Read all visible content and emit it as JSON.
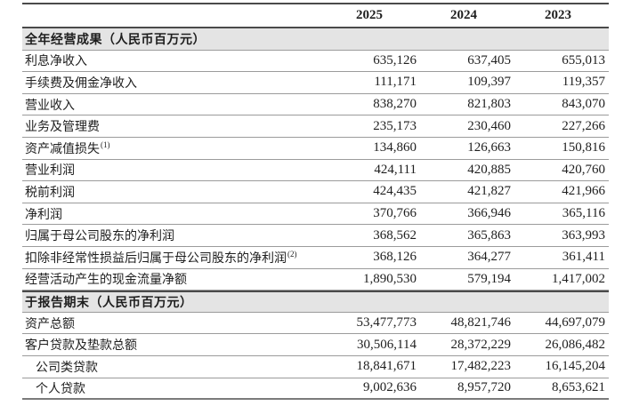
{
  "table": {
    "years": [
      "2025",
      "2024",
      "2023"
    ],
    "sections": [
      {
        "title": "全年经营成果（人民币百万元）",
        "rows": [
          {
            "label": "利息净收入",
            "values": [
              "635,126",
              "637,405",
              "655,013"
            ]
          },
          {
            "label": "手续费及佣金净收入",
            "values": [
              "111,171",
              "109,397",
              "119,357"
            ]
          },
          {
            "label": "营业收入",
            "values": [
              "838,270",
              "821,803",
              "843,070"
            ]
          },
          {
            "label": "业务及管理费",
            "values": [
              "235,173",
              "230,460",
              "227,266"
            ]
          },
          {
            "label": "资产减值损失",
            "sup": "(1)",
            "values": [
              "134,860",
              "126,663",
              "150,816"
            ]
          },
          {
            "label": "营业利润",
            "values": [
              "424,111",
              "420,885",
              "420,760"
            ]
          },
          {
            "label": "税前利润",
            "values": [
              "424,435",
              "421,827",
              "421,966"
            ]
          },
          {
            "label": "净利润",
            "values": [
              "370,766",
              "366,946",
              "365,116"
            ]
          },
          {
            "label": "归属于母公司股东的净利润",
            "values": [
              "368,562",
              "365,863",
              "363,993"
            ]
          },
          {
            "label": "扣除非经常性损益后归属于母公司股东的净利润",
            "sup": "(2)",
            "values": [
              "368,126",
              "364,277",
              "361,411"
            ]
          },
          {
            "label": "经营活动产生的现金流量净额",
            "values": [
              "1,890,530",
              "579,194",
              "1,417,002"
            ]
          }
        ]
      },
      {
        "title": "于报告期末（人民币百万元）",
        "rows": [
          {
            "label": "资产总额",
            "values": [
              "53,477,773",
              "48,821,746",
              "44,697,079"
            ]
          },
          {
            "label": "客户贷款及垫款总额",
            "values": [
              "30,506,114",
              "28,372,229",
              "26,086,482"
            ]
          },
          {
            "label": "公司类贷款",
            "indent": true,
            "values": [
              "18,841,671",
              "17,482,223",
              "16,145,204"
            ]
          },
          {
            "label": "个人贷款",
            "indent": true,
            "values": [
              "9,002,636",
              "8,957,720",
              "8,653,621"
            ]
          }
        ]
      }
    ]
  },
  "colors": {
    "section_band_bg": "#e4e4e4",
    "heavy_rule": "#4a4a4a",
    "light_rule": "#9b9b9b",
    "text": "#1e1e1e",
    "page_bg": "#ffffff"
  }
}
